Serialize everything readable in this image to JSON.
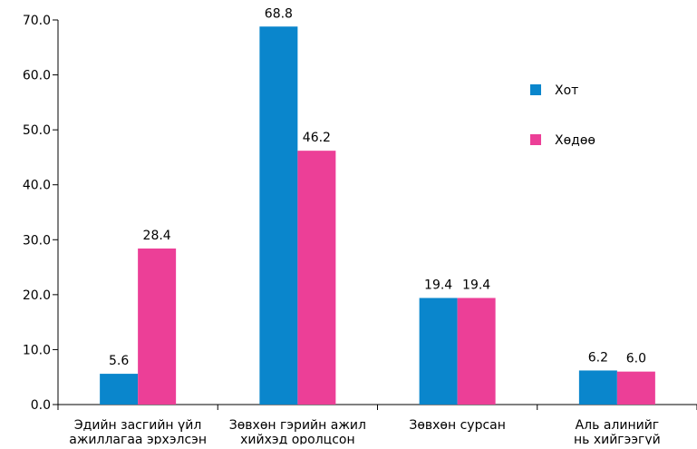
{
  "chart_data": {
    "type": "bar",
    "title": "",
    "xlabel": "",
    "ylabel": "",
    "ylim": [
      0,
      70
    ],
    "yticks": [
      "0.0",
      "10.0",
      "20.0",
      "30.0",
      "40.0",
      "50.0",
      "60.0",
      "70.0"
    ],
    "grid": false,
    "legend_position": "right",
    "categories": [
      [
        "Эдийн засгийн үйл",
        "ажиллагаа эрхэлсэн"
      ],
      [
        "Зөвхөн гэрийн ажил",
        "хийхэд оролцсон"
      ],
      [
        "Зөвхөн сурсан"
      ],
      [
        "Аль алинийг",
        "нь хийгээгүй"
      ]
    ],
    "series": [
      {
        "name": "Хот",
        "color": "#0a86cc",
        "values": [
          5.6,
          68.8,
          19.4,
          6.2
        ],
        "labels": [
          "5.6",
          "68.8",
          "19.4",
          "6.2"
        ]
      },
      {
        "name": "Хөдөө",
        "color": "#ec3f97",
        "values": [
          28.4,
          46.2,
          19.4,
          6.0
        ],
        "labels": [
          "28.4",
          "46.2",
          "19.4",
          "6.0"
        ]
      }
    ]
  }
}
